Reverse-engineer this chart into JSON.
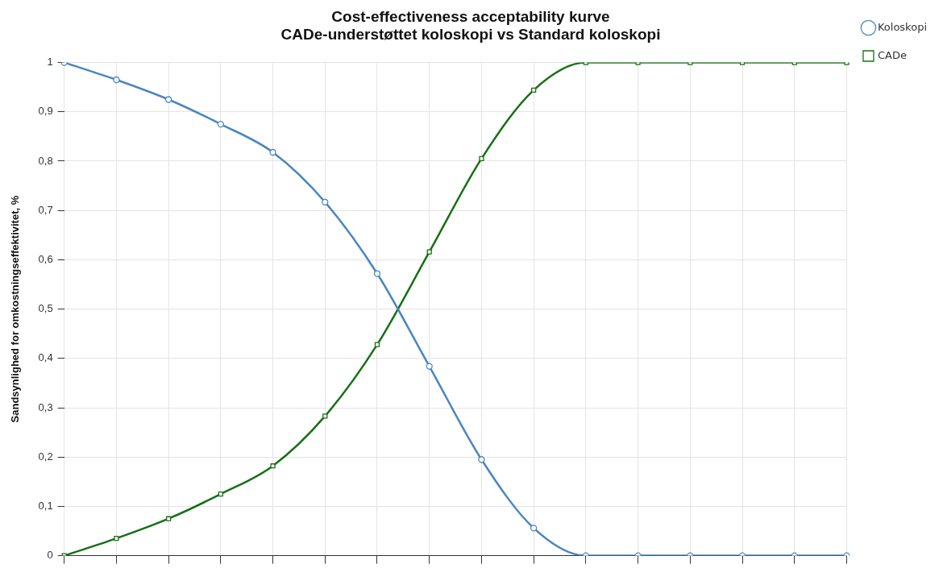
{
  "chart_data": {
    "type": "line",
    "title": "Cost-effectiveness acceptability kurve",
    "subtitle": "CADe-understøttet koloskopi vs Standard koloskopi",
    "ylabel": "Sandsynlighed for omkostningseffektivitet, %",
    "categories": [
      null,
      null,
      null,
      null,
      null,
      null,
      null,
      null,
      null,
      null,
      null,
      null,
      null,
      null,
      null,
      null
    ],
    "series": [
      {
        "name": "Koloskopi",
        "color": "#4a86c0",
        "values": [
          1,
          0.965,
          0.925,
          0.875,
          0.818,
          0.717,
          0.572,
          0.384,
          0.195,
          0.056,
          0,
          0,
          0,
          0,
          0,
          0
        ],
        "marker": "circle"
      },
      {
        "name": "CADe",
        "color": "#167016",
        "values": [
          0,
          0.035,
          0.075,
          0.125,
          0.182,
          0.283,
          0.428,
          0.616,
          0.805,
          0.944,
          1,
          1,
          1,
          1,
          1,
          1
        ],
        "marker": "square"
      }
    ],
    "ylim": [
      0,
      1
    ],
    "yticks": [
      0,
      {
        "value": 0.1,
        "label": "0,1"
      },
      {
        "value": 0.2,
        "label": "0,2"
      },
      {
        "value": 0.3,
        "label": "0,3"
      },
      {
        "value": 0.4,
        "label": "0,4"
      },
      {
        "value": 0.5,
        "label": "0,5"
      },
      {
        "value": 0.6,
        "label": "0,6"
      },
      {
        "value": 0.7,
        "label": "0,7"
      },
      {
        "value": 0.8,
        "label": "0,8"
      },
      {
        "value": 0.9,
        "label": "0,9"
      },
      1
    ],
    "grid": true,
    "legend": "top right",
    "line_style": "solid"
  }
}
